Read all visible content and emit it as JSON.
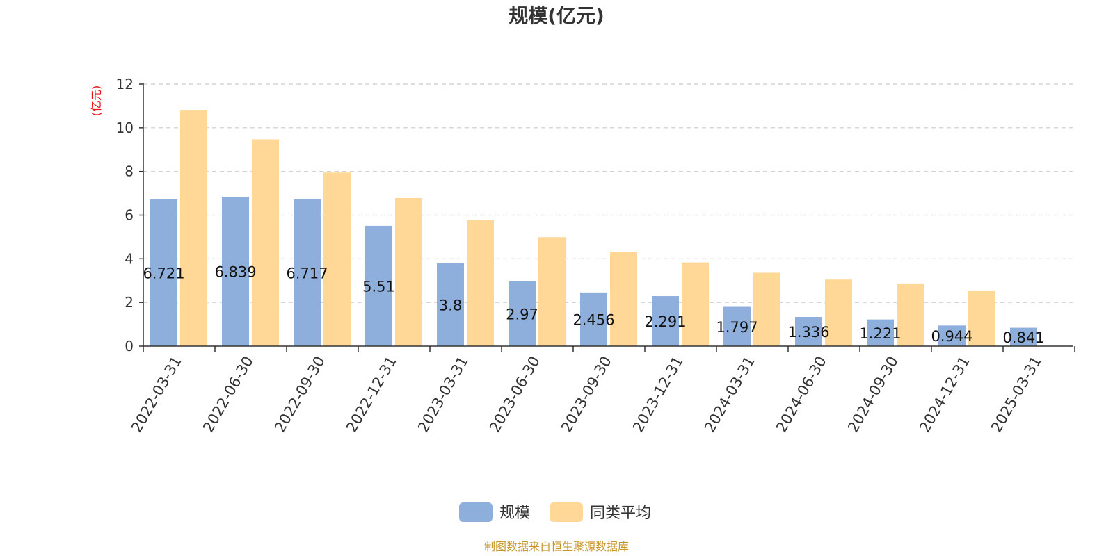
{
  "chart_data": {
    "type": "bar",
    "title": "规模(亿元)",
    "yunit": "(亿元)",
    "ylim": [
      0,
      12
    ],
    "yticks": [
      0,
      2,
      4,
      6,
      8,
      10,
      12
    ],
    "grid": true,
    "legend_position": "bottom-center",
    "categories": [
      "2022-03-31",
      "2022-06-30",
      "2022-09-30",
      "2022-12-31",
      "2023-03-31",
      "2023-06-30",
      "2023-09-30",
      "2023-12-31",
      "2024-03-31",
      "2024-06-30",
      "2024-09-30",
      "2024-12-31",
      "2025-03-31"
    ],
    "series": [
      {
        "name": "规模",
        "color": "#8eaedc",
        "values": [
          6.721,
          6.839,
          6.717,
          5.51,
          3.8,
          2.97,
          2.456,
          2.291,
          1.797,
          1.336,
          1.221,
          0.944,
          0.841
        ],
        "labels": [
          "6.721",
          "6.839",
          "6.717",
          "5.51",
          "3.8",
          "2.97",
          "2.456",
          "2.291",
          "1.797",
          "1.336",
          "1.221",
          "0.944",
          "0.841"
        ]
      },
      {
        "name": "同类平均",
        "color": "#ffd898",
        "values": [
          10.82,
          9.47,
          7.95,
          6.78,
          5.79,
          4.99,
          4.33,
          3.83,
          3.36,
          3.05,
          2.87,
          2.55,
          null
        ]
      }
    ]
  },
  "source_note": "制图数据来自恒生聚源数据库"
}
